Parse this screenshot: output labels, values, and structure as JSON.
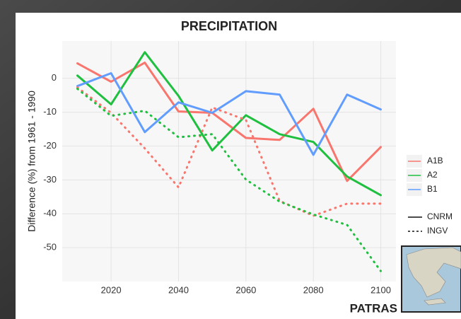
{
  "chart_data": {
    "type": "line",
    "title": "PRECIPITATION",
    "y_label": "Difference (%) from 1961 - 1990",
    "annotation": "PATRAS",
    "x": [
      2010,
      2020,
      2030,
      2040,
      2050,
      2060,
      2070,
      2080,
      2090,
      2100
    ],
    "xlim": [
      2005.5,
      2104.5
    ],
    "xticks": [
      2020,
      2040,
      2060,
      2080,
      2100
    ],
    "ylim": [
      -60,
      11
    ],
    "yticks": [
      0,
      -10,
      -20,
      -30,
      -40,
      -50
    ],
    "grid": true,
    "color_legend": [
      {
        "name": "A1B",
        "color": "#f8766d"
      },
      {
        "name": "A2",
        "color": "#1fbf3f"
      },
      {
        "name": "B1",
        "color": "#619cff"
      }
    ],
    "linetype_legend": [
      {
        "name": "CNRM",
        "dash": "solid"
      },
      {
        "name": "INGV",
        "dash": "dotted"
      }
    ],
    "series": [
      {
        "color": "#f8766d",
        "dash": "solid",
        "values": [
          4.4,
          -1,
          4.6,
          -9.8,
          -10.2,
          -17.6,
          -18.2,
          -9,
          -30.3,
          -20.3
        ]
      },
      {
        "color": "#1fbf3f",
        "dash": "solid",
        "values": [
          0.8,
          -7.7,
          7.7,
          -5.2,
          -21.3,
          -10.9,
          -16.5,
          -18.8,
          -29,
          -34.5
        ]
      },
      {
        "color": "#619cff",
        "dash": "solid",
        "values": [
          -2.3,
          1.5,
          -15.9,
          -7.1,
          -10.2,
          -3.8,
          -4.8,
          -22.6,
          -4.8,
          -9.2
        ]
      },
      {
        "color": "#f8766d",
        "dash": "dotted",
        "values": [
          -2.7,
          -10.2,
          -20.7,
          -32.2,
          -8.6,
          -12.3,
          -36.2,
          -40.6,
          -37,
          -37
        ]
      },
      {
        "color": "#1fbf3f",
        "dash": "dotted",
        "values": [
          -3.1,
          -11.1,
          -9.6,
          -17.4,
          -16.5,
          -29.9,
          -36.4,
          -40.2,
          -43.3,
          -56.9
        ]
      }
    ]
  }
}
